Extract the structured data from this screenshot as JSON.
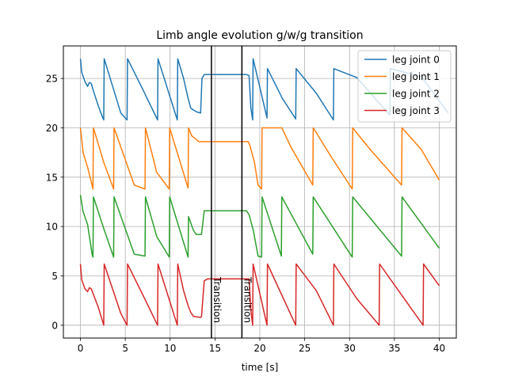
{
  "chart_data": {
    "type": "line",
    "title": "Limb angle evolution g/w/g transition",
    "xlabel": "time [s]",
    "ylabel": "",
    "xlim": [
      -1.9,
      41.9
    ],
    "ylim": [
      -1.3,
      28.3
    ],
    "xticks": [
      0,
      5,
      10,
      15,
      20,
      25,
      30,
      35,
      40
    ],
    "yticks": [
      0,
      5,
      10,
      15,
      20,
      25
    ],
    "grid": true,
    "legend_position": "top-right",
    "vlines": [
      {
        "x": 14.6,
        "label": "Transition"
      },
      {
        "x": 18.0,
        "label": "Transition"
      }
    ],
    "series": [
      {
        "name": "leg joint 0",
        "color": "#1f77b4",
        "points": [
          [
            0,
            27
          ],
          [
            0.15,
            25.6
          ],
          [
            0.5,
            24.7
          ],
          [
            0.8,
            24.2
          ],
          [
            1,
            24.6
          ],
          [
            1.2,
            24.5
          ],
          [
            1.5,
            23.6
          ],
          [
            2,
            22.2
          ],
          [
            2.5,
            21
          ],
          [
            2.6,
            20.8
          ],
          [
            2.65,
            27
          ],
          [
            4.5,
            21.5
          ],
          [
            5.2,
            20.8
          ],
          [
            5.25,
            27
          ],
          [
            7,
            23.8
          ],
          [
            8.6,
            20.8
          ],
          [
            8.65,
            27
          ],
          [
            10.8,
            20.8
          ],
          [
            10.85,
            27
          ],
          [
            11.5,
            25
          ],
          [
            12,
            23
          ],
          [
            12.3,
            22
          ],
          [
            12.6,
            21.8
          ],
          [
            13.0,
            21.6
          ],
          [
            13.4,
            21.5
          ],
          [
            13.55,
            25
          ],
          [
            13.8,
            25.4
          ],
          [
            18.5,
            25.4
          ],
          [
            18.8,
            25.3
          ],
          [
            19.0,
            22
          ],
          [
            19.2,
            20.8
          ],
          [
            19.25,
            27
          ],
          [
            20.8,
            21
          ],
          [
            20.85,
            26
          ],
          [
            22.5,
            23
          ],
          [
            24.0,
            20.9
          ],
          [
            24.05,
            26
          ],
          [
            26.3,
            23.5
          ],
          [
            28.2,
            20.8
          ],
          [
            28.25,
            26
          ],
          [
            30.8,
            25.1
          ],
          [
            33.5,
            22.3
          ],
          [
            34.5,
            21.3
          ],
          [
            34.55,
            26
          ],
          [
            38.0,
            25.2
          ],
          [
            41.0,
            21.5
          ]
        ]
      },
      {
        "name": "leg joint 1",
        "color": "#ff7f0e",
        "points": [
          [
            0,
            20
          ],
          [
            0.3,
            17.5
          ],
          [
            0.8,
            16
          ],
          [
            1.3,
            14.2
          ],
          [
            1.4,
            13.8
          ],
          [
            1.45,
            20
          ],
          [
            2.6,
            16.5
          ],
          [
            3.7,
            13.8
          ],
          [
            3.75,
            20
          ],
          [
            6.0,
            14.2
          ],
          [
            7.2,
            13.8
          ],
          [
            7.25,
            20
          ],
          [
            8.5,
            15.5
          ],
          [
            9.9,
            13.8
          ],
          [
            9.95,
            20
          ],
          [
            12.0,
            13.9
          ],
          [
            12.05,
            20
          ],
          [
            12.4,
            19.2
          ],
          [
            13.2,
            18.6
          ],
          [
            13.5,
            18.6
          ],
          [
            13.8,
            18.6
          ],
          [
            18.7,
            18.6
          ],
          [
            18.9,
            18.2
          ],
          [
            19.4,
            16.5
          ],
          [
            19.8,
            14.2
          ],
          [
            20.2,
            13.8
          ],
          [
            20.25,
            20
          ],
          [
            22.4,
            20
          ],
          [
            22.45,
            20
          ],
          [
            23.5,
            18
          ],
          [
            25.9,
            14.2
          ],
          [
            25.95,
            20
          ],
          [
            28.0,
            17
          ],
          [
            30.3,
            13.8
          ],
          [
            30.35,
            20
          ],
          [
            32.3,
            17.8
          ],
          [
            35.8,
            14.2
          ],
          [
            35.85,
            20
          ],
          [
            38.0,
            17.8
          ],
          [
            40.0,
            14.7
          ]
        ]
      },
      {
        "name": "leg joint 2",
        "color": "#2ca02c",
        "points": [
          [
            0,
            13.2
          ],
          [
            0.3,
            11.5
          ],
          [
            0.8,
            10.2
          ],
          [
            1.3,
            7.2
          ],
          [
            1.4,
            6.9
          ],
          [
            1.45,
            13
          ],
          [
            2.6,
            9.8
          ],
          [
            3.7,
            6.9
          ],
          [
            3.75,
            13
          ],
          [
            6.0,
            7.2
          ],
          [
            7.2,
            7.0
          ],
          [
            7.25,
            13
          ],
          [
            8.5,
            9
          ],
          [
            9.9,
            6.9
          ],
          [
            9.95,
            13
          ],
          [
            12.0,
            6.9
          ],
          [
            12.05,
            11
          ],
          [
            12.6,
            9.6
          ],
          [
            12.9,
            9.2
          ],
          [
            13.5,
            9.2
          ],
          [
            13.8,
            11.6
          ],
          [
            18.5,
            11.6
          ],
          [
            18.8,
            11.2
          ],
          [
            19.3,
            9.5
          ],
          [
            19.8,
            7
          ],
          [
            20.2,
            6.9
          ],
          [
            20.25,
            13
          ],
          [
            22.4,
            7.0
          ],
          [
            22.45,
            13
          ],
          [
            25.9,
            7.2
          ],
          [
            25.95,
            13
          ],
          [
            30.3,
            6.9
          ],
          [
            30.35,
            13
          ],
          [
            35.8,
            7.0
          ],
          [
            35.85,
            13
          ],
          [
            40.0,
            7.8
          ]
        ]
      },
      {
        "name": "leg joint 3",
        "color": "#d62728",
        "points": [
          [
            0,
            6.2
          ],
          [
            0.15,
            4.6
          ],
          [
            0.5,
            3.7
          ],
          [
            0.8,
            3.4
          ],
          [
            1.0,
            3.8
          ],
          [
            1.2,
            3.7
          ],
          [
            1.5,
            3.0
          ],
          [
            2.0,
            1.8
          ],
          [
            2.5,
            0.3
          ],
          [
            2.6,
            0
          ],
          [
            2.65,
            6.2
          ],
          [
            4.5,
            1.2
          ],
          [
            5.2,
            0
          ],
          [
            5.25,
            6.2
          ],
          [
            7,
            3
          ],
          [
            8.6,
            0
          ],
          [
            8.65,
            6.2
          ],
          [
            10.8,
            0
          ],
          [
            10.85,
            6.2
          ],
          [
            11.5,
            3.5
          ],
          [
            12,
            2
          ],
          [
            12.3,
            1.3
          ],
          [
            12.6,
            0.9
          ],
          [
            13.4,
            0.8
          ],
          [
            13.5,
            0.9
          ],
          [
            13.8,
            4.5
          ],
          [
            14.2,
            4.7
          ],
          [
            18.7,
            4.7
          ],
          [
            18.8,
            4.7
          ],
          [
            19.0,
            1.5
          ],
          [
            19.2,
            0
          ],
          [
            19.25,
            6.2
          ],
          [
            20.8,
            0
          ],
          [
            20.85,
            6.2
          ],
          [
            24.0,
            0
          ],
          [
            24.05,
            6.2
          ],
          [
            26.3,
            3.5
          ],
          [
            28.2,
            0
          ],
          [
            28.25,
            6.2
          ],
          [
            30.8,
            2.7
          ],
          [
            33.3,
            0
          ],
          [
            33.35,
            6.2
          ],
          [
            38.2,
            0
          ],
          [
            38.25,
            6.2
          ],
          [
            40.0,
            4.0
          ]
        ]
      }
    ]
  }
}
